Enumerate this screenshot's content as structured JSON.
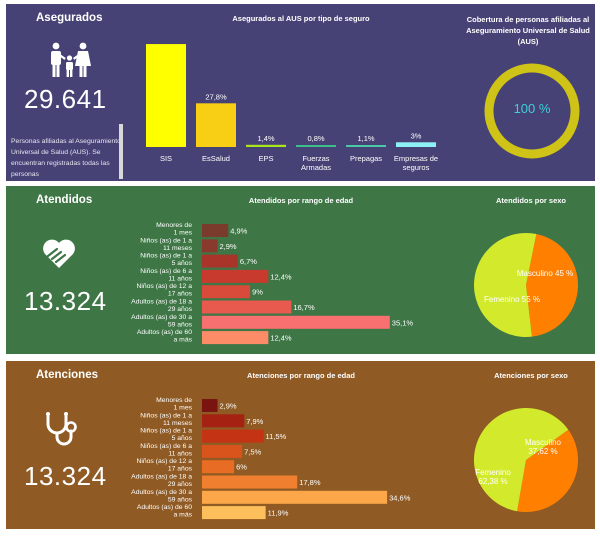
{
  "asegurados": {
    "title": "Asegurados",
    "total": "29.641",
    "description": "Personas afiliadas al Aseguramiento Universal de Salud (AUS). Se encuentran registradas todas las personas",
    "coverage_title": "Cobertura de personas afiliadas al Aseguramiento Universal de Salud (AUS)",
    "coverage_value": "100 %",
    "coverage_percent": 100
  },
  "atendidos": {
    "title": "Atendidos",
    "total": "13.324",
    "sex_title": "Atendidos por sexo"
  },
  "atenciones": {
    "title": "Atenciones",
    "total": "13.324",
    "sex_title": "Atenciones por sexo"
  },
  "colors": {
    "asegurados_bg": "#474275",
    "atendidos_bg": "#3e7646",
    "atenciones_bg": "#8f5a23",
    "ring": "#cfc318",
    "coverage_text": "#3fcfd9",
    "pie_masculino": "#ff7f00",
    "pie_femenino": "#d3ea2c"
  },
  "chart_data": [
    {
      "id": "seguro",
      "type": "bar",
      "title": "Asegurados al AUS por tipo de seguro",
      "categories": [
        "SIS",
        "EsSalud",
        "EPS",
        "Fuerzas Armadas",
        "Prepagas",
        "Empresas de seguros"
      ],
      "values": [
        65.5,
        27.8,
        1.4,
        0.8,
        1.1,
        3.0
      ],
      "labels": [
        "",
        "27,8%",
        "1,4%",
        "0,8%",
        "1,1%",
        "3%"
      ],
      "colors": [
        "#ffff00",
        "#f8cf14",
        "#a9e61c",
        "#3dbf8c",
        "#49c9a4",
        "#8ef1f5"
      ],
      "ylim": [
        0,
        70
      ]
    },
    {
      "id": "atendidos_edad",
      "type": "bar",
      "orientation": "horizontal",
      "title": "Atendidos por rango de edad",
      "categories": [
        "Menores de 1 mes",
        "Niños (as) de 1 a 11 meses",
        "Niños (as) de 1 a 5 años",
        "Niños (as) de 6 a 11 años",
        "Niños (as) de 12 a 17 años",
        "Adultos (as) de 18 a 29 años",
        "Adultos (as) de 30 a 59 años",
        "Adultos (as) de 60 a más"
      ],
      "values": [
        4.9,
        2.9,
        6.7,
        12.4,
        9.0,
        16.7,
        35.1,
        12.4
      ],
      "labels": [
        "4,9%",
        "2,9%",
        "6,7%",
        "12,4%",
        "9%",
        "16,7%",
        "35,1%",
        "12,4%"
      ],
      "colors": [
        "#7a3b2c",
        "#8a3a2c",
        "#a8342a",
        "#c83a2e",
        "#d84a3a",
        "#e85a4e",
        "#f87070",
        "#fc8c68"
      ],
      "xlim": [
        0,
        40
      ]
    },
    {
      "id": "atendidos_sexo",
      "type": "pie",
      "title": "Atendidos por sexo",
      "categories": [
        "Masculino",
        "Femenino"
      ],
      "values": [
        45,
        55
      ],
      "labels": [
        "Masculino 45 %",
        "Femenino 55 %"
      ]
    },
    {
      "id": "atenciones_edad",
      "type": "bar",
      "orientation": "horizontal",
      "title": "Atenciones por rango de edad",
      "categories": [
        "Menores de 1 mes",
        "Niños (as) de 1 a 11 meses",
        "Niños (as) de 1 a 5 años",
        "Niños (as) de 6 a 11 años",
        "Niños (as) de 12 a 17 años",
        "Adultos (as) de 18 a 29 años",
        "Adultos (as) de 30 a 59 años",
        "Adultos (as) de 60 a más"
      ],
      "values": [
        2.9,
        7.9,
        11.5,
        7.5,
        6.0,
        17.8,
        34.6,
        11.9
      ],
      "labels": [
        "2,9%",
        "7,9%",
        "11,5%",
        "7,5%",
        "6%",
        "17,8%",
        "34,6%",
        "11,9%"
      ],
      "colors": [
        "#7a1410",
        "#a52212",
        "#c43414",
        "#d8541c",
        "#e86c24",
        "#f08030",
        "#fca84a",
        "#fdbe5c"
      ],
      "xlim": [
        0,
        40
      ]
    },
    {
      "id": "atenciones_sexo",
      "type": "pie",
      "title": "Atenciones por sexo",
      "categories": [
        "Masculino",
        "Femenino"
      ],
      "values": [
        37.62,
        62.38
      ],
      "labels": [
        "Masculino 37,62 %",
        "Femenino 62,38 %"
      ]
    }
  ]
}
